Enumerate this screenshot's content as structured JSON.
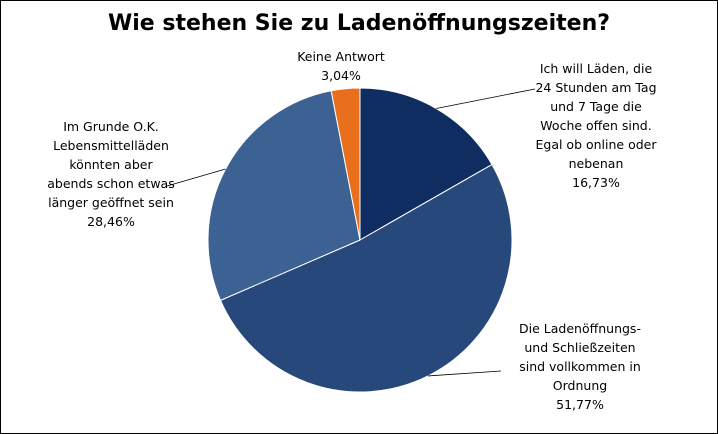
{
  "chart_data": {
    "type": "pie",
    "title": "Wie stehen Sie zu Ladenöffnungszeiten?",
    "slices": [
      {
        "label_lines": [
          "Ich will Läden, die",
          "24 Stunden am Tag",
          "und 7 Tage die",
          "Woche offen sind.",
          "Egal ob online oder",
          "nebenan"
        ],
        "value": 16.73,
        "value_label": "16,73%",
        "color": "#0f2d61"
      },
      {
        "label_lines": [
          "Die Ladenöffnungs-",
          "und Schließzeiten",
          "sind vollkommen in",
          "Ordnung"
        ],
        "value": 51.77,
        "value_label": "51,77%",
        "color": "#27487b"
      },
      {
        "label_lines": [
          "Im Grunde O.K.",
          "Lebensmittelläden",
          "könnten aber",
          "abends schon etwas",
          "länger geöffnet sein"
        ],
        "value": 28.46,
        "value_label": "28,46%",
        "color": "#3c6294"
      },
      {
        "label_lines": [
          "Keine Antwort"
        ],
        "value": 3.04,
        "value_label": "3,04%",
        "color": "#e8701d"
      }
    ]
  }
}
